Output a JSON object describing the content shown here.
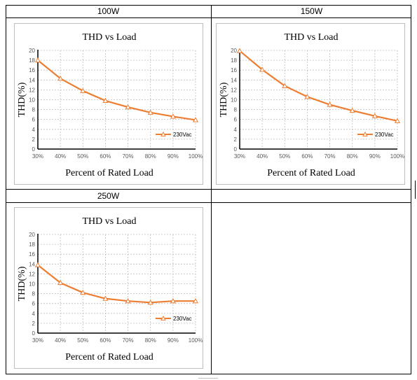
{
  "headers": [
    "100W",
    "150W",
    "250W"
  ],
  "colors": {
    "series": "#ED7D31",
    "grid": "#BFBFBF",
    "axis": "#000000"
  },
  "chart_data": [
    {
      "type": "line",
      "panel_label": "100W",
      "title": "THD vs Load",
      "xlabel": "Percent of Rated Load",
      "ylabel": "THD(%)",
      "categories": [
        "30%",
        "40%",
        "50%",
        "60%",
        "70%",
        "80%",
        "90%",
        "100%"
      ],
      "yticks": [
        "0",
        "2",
        "4",
        "6",
        "8",
        "10",
        "12",
        "14",
        "16",
        "18",
        "20"
      ],
      "ylim": [
        0,
        20
      ],
      "grid": true,
      "legend_position": "bottom-right",
      "series": [
        {
          "name": "230Vac",
          "marker": "triangle-open",
          "values": [
            18.0,
            14.3,
            11.8,
            9.8,
            8.5,
            7.4,
            6.6,
            5.9
          ]
        }
      ]
    },
    {
      "type": "line",
      "panel_label": "150W",
      "title": "THD vs Load",
      "xlabel": "Percent of Rated Load",
      "ylabel": "THD(%)",
      "categories": [
        "30%",
        "40%",
        "50%",
        "60%",
        "70%",
        "80%",
        "90%",
        "100%"
      ],
      "yticks": [
        "0",
        "2",
        "4",
        "6",
        "8",
        "10",
        "12",
        "14",
        "16",
        "18",
        "20"
      ],
      "ylim": [
        0,
        20
      ],
      "grid": true,
      "legend_position": "bottom-right",
      "series": [
        {
          "name": "230Vac",
          "marker": "triangle-open",
          "values": [
            19.9,
            16.1,
            12.8,
            10.6,
            9.0,
            7.8,
            6.7,
            5.7
          ]
        }
      ]
    },
    {
      "type": "line",
      "panel_label": "250W",
      "title": "THD vs Load",
      "xlabel": "Percent of Rated Load",
      "ylabel": "THD(%)",
      "categories": [
        "30%",
        "40%",
        "50%",
        "60%",
        "70%",
        "80%",
        "90%",
        "100%"
      ],
      "yticks": [
        "0",
        "2",
        "4",
        "6",
        "8",
        "10",
        "12",
        "14",
        "16",
        "18",
        "20"
      ],
      "ylim": [
        0,
        20
      ],
      "grid": true,
      "legend_position": "bottom-right",
      "series": [
        {
          "name": "230Vac",
          "marker": "triangle-open",
          "values": [
            13.8,
            10.2,
            8.2,
            7.0,
            6.5,
            6.2,
            6.5,
            6.5
          ]
        }
      ]
    }
  ]
}
